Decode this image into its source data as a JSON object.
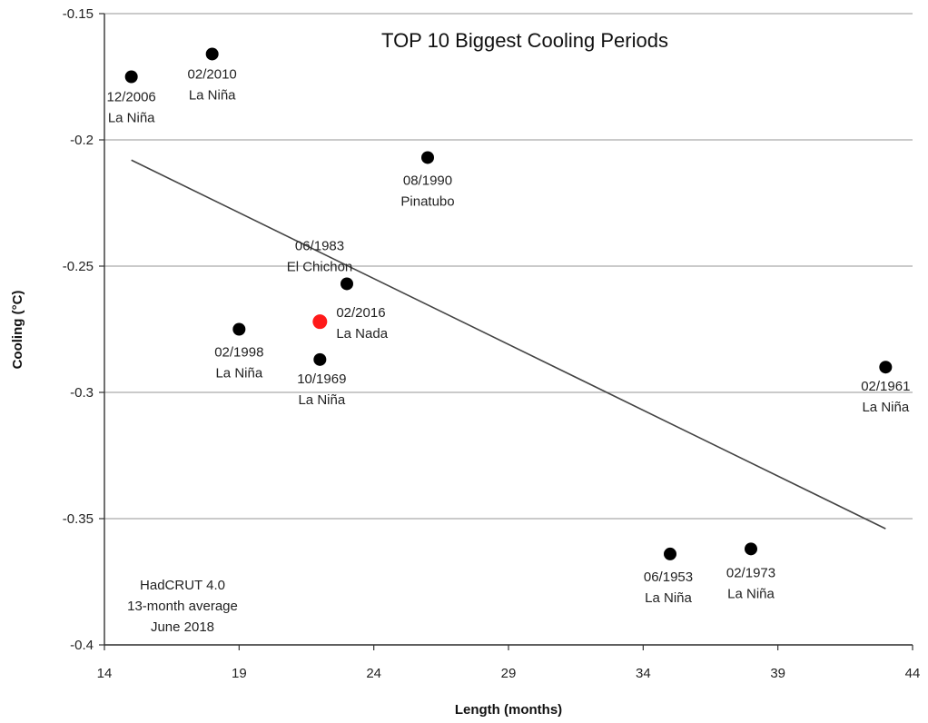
{
  "chart_data": {
    "type": "scatter",
    "title": "TOP 10 Biggest Cooling Periods",
    "xlabel": "Length (months)",
    "ylabel": "Cooling (°C)",
    "xlim": [
      14,
      44
    ],
    "ylim": [
      -0.4,
      -0.15
    ],
    "xticks": [
      14,
      19,
      24,
      29,
      34,
      39,
      44
    ],
    "yticks": [
      -0.15,
      -0.2,
      -0.25,
      -0.3,
      -0.35,
      -0.4
    ],
    "ytick_labels": [
      "-0.15",
      "-0.2",
      "-0.25",
      "-0.3",
      "-0.35",
      "-0.4"
    ],
    "grid": "horizontal",
    "points": [
      {
        "x": 15,
        "y": -0.175,
        "date": "12/2006",
        "cause": "La Niña",
        "color": "#000000"
      },
      {
        "x": 18,
        "y": -0.166,
        "date": "02/2010",
        "cause": "La Niña",
        "color": "#000000"
      },
      {
        "x": 26,
        "y": -0.207,
        "date": "08/1990",
        "cause": "Pinatubo",
        "color": "#000000"
      },
      {
        "x": 23,
        "y": -0.257,
        "date": "06/1983",
        "cause": "El Chichon",
        "color": "#000000"
      },
      {
        "x": 22,
        "y": -0.272,
        "date": "02/2016",
        "cause": "La Nada",
        "color": "#ff1a1a"
      },
      {
        "x": 19,
        "y": -0.275,
        "date": "02/1998",
        "cause": "La Niña",
        "color": "#000000"
      },
      {
        "x": 22,
        "y": -0.287,
        "date": "10/1969",
        "cause": "La Niña",
        "color": "#000000"
      },
      {
        "x": 43,
        "y": -0.29,
        "date": "02/1961",
        "cause": "La Niña",
        "color": "#000000"
      },
      {
        "x": 35,
        "y": -0.364,
        "date": "06/1953",
        "cause": "La Niña",
        "color": "#000000"
      },
      {
        "x": 38,
        "y": -0.362,
        "date": "02/1973",
        "cause": "La Niña",
        "color": "#000000"
      }
    ],
    "trendline": {
      "x": [
        15,
        43
      ],
      "y": [
        -0.208,
        -0.354
      ]
    },
    "annotation": [
      "HadCRUT 4.0",
      "13-month average",
      "June 2018"
    ]
  }
}
